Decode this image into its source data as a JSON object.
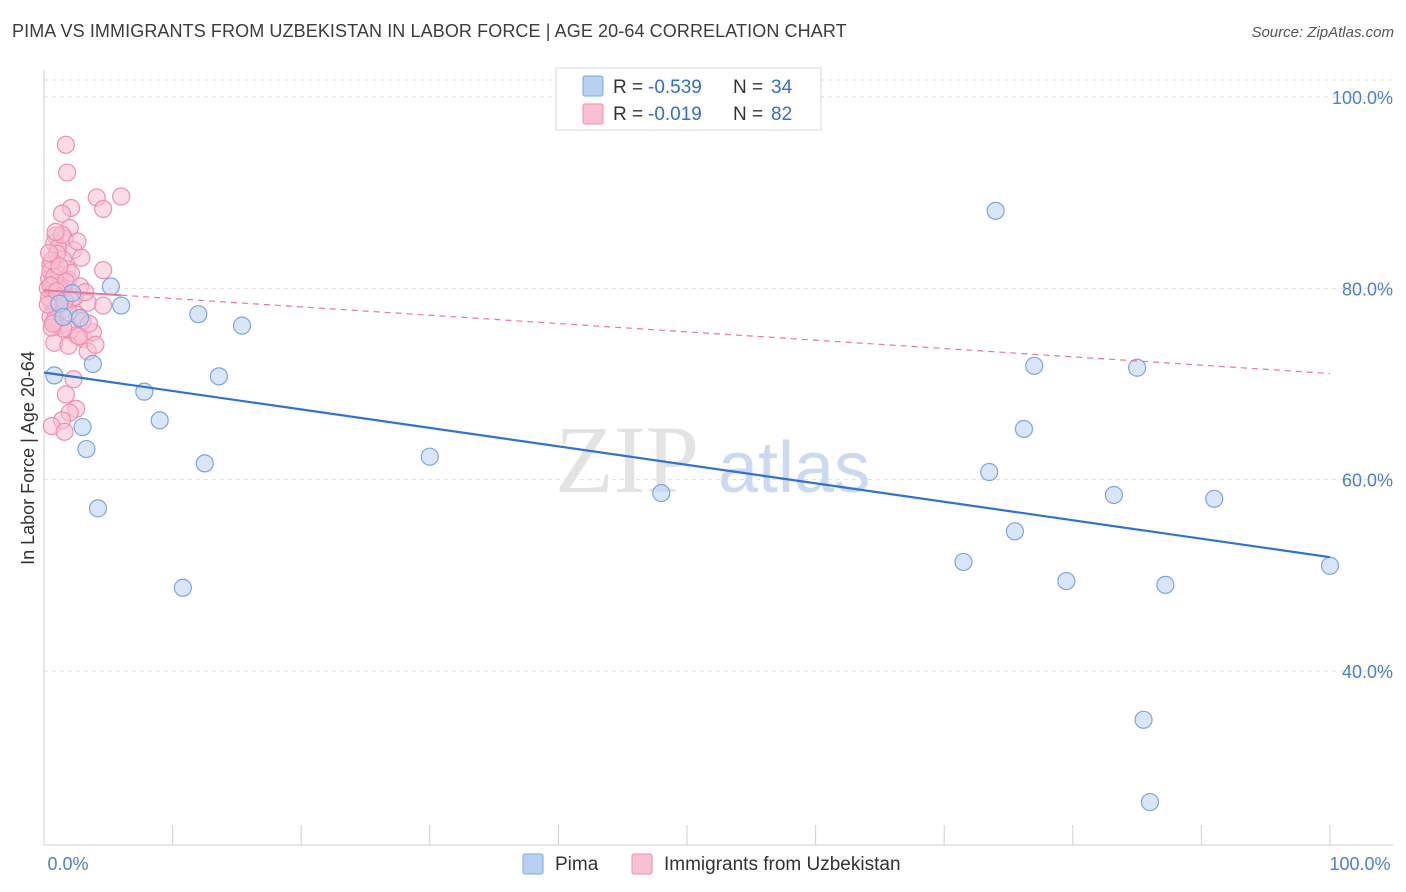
{
  "title": "PIMA VS IMMIGRANTS FROM UZBEKISTAN IN LABOR FORCE | AGE 20-64 CORRELATION CHART",
  "source": "Source: ZipAtlas.com",
  "watermark": {
    "zip": "ZIP",
    "atlas": "atlas"
  },
  "colors": {
    "pima_fill": "#b8d1f3",
    "pima_stroke": "#7ba6e0",
    "pima_line": "#2f72d0",
    "uzb_fill": "#f8c0d2",
    "uzb_stroke": "#ee8fb0",
    "uzb_line": "#e8779c",
    "axis_label": "#4a7fd4",
    "grid": "#dddddd"
  },
  "legend": {
    "rows": [
      {
        "r_label": "R =",
        "r_value": "-0.539",
        "n_label": "N =",
        "n_value": "34"
      },
      {
        "r_label": "R =",
        "r_value": "-0.019",
        "n_label": "N =",
        "n_value": "82"
      }
    ]
  },
  "chart_data": {
    "type": "scatter",
    "title": "PIMA VS IMMIGRANTS FROM UZBEKISTAN IN LABOR FORCE | AGE 20-64 CORRELATION CHART",
    "xlabel": "",
    "ylabel": "In Labor Force | Age 20-64",
    "xlim": [
      0,
      100
    ],
    "ylim": [
      20,
      103
    ],
    "x_tick_labels": [
      "0.0%",
      "100.0%"
    ],
    "y_ticks": [
      40,
      60,
      80,
      100
    ],
    "y_tick_labels": [
      "40.0%",
      "60.0%",
      "80.0%",
      "100.0%"
    ],
    "series": [
      {
        "name": "Pima",
        "trend": {
          "x": [
            0,
            100
          ],
          "y": [
            71.2,
            51.9
          ]
        },
        "points": [
          [
            0.8,
            70.9
          ],
          [
            1.2,
            78.4
          ],
          [
            2.8,
            76.9
          ],
          [
            3.8,
            72.1
          ],
          [
            5.2,
            80.2
          ],
          [
            6.0,
            78.2
          ],
          [
            3.0,
            65.5
          ],
          [
            3.3,
            63.2
          ],
          [
            4.2,
            57.0
          ],
          [
            7.8,
            69.2
          ],
          [
            9.0,
            66.2
          ],
          [
            12.0,
            77.3
          ],
          [
            13.6,
            70.8
          ],
          [
            15.4,
            76.1
          ],
          [
            12.5,
            61.7
          ],
          [
            10.8,
            48.7
          ],
          [
            30.0,
            62.4
          ],
          [
            48.0,
            58.6
          ],
          [
            71.5,
            51.4
          ],
          [
            73.5,
            60.8
          ],
          [
            75.5,
            54.6
          ],
          [
            74.0,
            88.1
          ],
          [
            76.2,
            65.3
          ],
          [
            77.0,
            71.9
          ],
          [
            85.0,
            71.7
          ],
          [
            79.5,
            49.4
          ],
          [
            83.2,
            58.4
          ],
          [
            85.5,
            34.9
          ],
          [
            86.0,
            26.3
          ],
          [
            87.2,
            49.0
          ],
          [
            91.0,
            58.0
          ],
          [
            100.0,
            51.0
          ],
          [
            1.5,
            77.0
          ],
          [
            2.2,
            79.5
          ]
        ]
      },
      {
        "name": "Immigrants from Uzbekistan",
        "trend": {
          "x": [
            0,
            100
          ],
          "y": [
            79.8,
            71.1
          ]
        },
        "points": [
          [
            1.7,
            95.0
          ],
          [
            1.8,
            92.1
          ],
          [
            4.1,
            89.5
          ],
          [
            6.0,
            89.6
          ],
          [
            2.1,
            88.4
          ],
          [
            4.6,
            88.3
          ],
          [
            1.4,
            87.8
          ],
          [
            2.0,
            86.3
          ],
          [
            0.9,
            85.5
          ],
          [
            1.6,
            85.2
          ],
          [
            0.8,
            84.7
          ],
          [
            1.1,
            84.2
          ],
          [
            2.3,
            84.0
          ],
          [
            1.5,
            83.0
          ],
          [
            2.9,
            83.2
          ],
          [
            0.5,
            82.5
          ],
          [
            1.8,
            82.0
          ],
          [
            4.6,
            81.9
          ],
          [
            0.4,
            81.0
          ],
          [
            0.9,
            80.6
          ],
          [
            1.3,
            80.3
          ],
          [
            1.9,
            80.9
          ],
          [
            0.3,
            80.0
          ],
          [
            0.7,
            79.5
          ],
          [
            1.1,
            79.8
          ],
          [
            1.4,
            79.3
          ],
          [
            2.2,
            78.9
          ],
          [
            0.6,
            78.5
          ],
          [
            0.9,
            78.0
          ],
          [
            1.6,
            77.8
          ],
          [
            2.6,
            77.2
          ],
          [
            3.4,
            78.5
          ],
          [
            4.6,
            78.2
          ],
          [
            0.5,
            77.0
          ],
          [
            0.8,
            76.5
          ],
          [
            1.2,
            76.1
          ],
          [
            2.0,
            75.6
          ],
          [
            2.5,
            75.1
          ],
          [
            3.1,
            74.7
          ],
          [
            3.8,
            75.4
          ],
          [
            0.8,
            74.3
          ],
          [
            1.9,
            74.0
          ],
          [
            3.4,
            73.4
          ],
          [
            4.0,
            74.1
          ],
          [
            2.3,
            70.5
          ],
          [
            1.7,
            68.9
          ],
          [
            2.5,
            67.4
          ],
          [
            2.0,
            67.0
          ],
          [
            1.4,
            66.2
          ],
          [
            0.6,
            65.6
          ],
          [
            1.6,
            65.0
          ],
          [
            0.5,
            81.8
          ],
          [
            1.0,
            83.6
          ],
          [
            1.4,
            85.6
          ],
          [
            2.6,
            84.9
          ],
          [
            0.7,
            80.4
          ],
          [
            1.2,
            81.4
          ],
          [
            0.4,
            79.0
          ],
          [
            0.9,
            76.9
          ],
          [
            3.0,
            76.6
          ],
          [
            1.5,
            75.8
          ],
          [
            2.7,
            75.0
          ],
          [
            3.5,
            76.3
          ],
          [
            0.6,
            82.9
          ],
          [
            1.1,
            80.1
          ],
          [
            0.3,
            78.3
          ],
          [
            2.1,
            81.6
          ],
          [
            1.3,
            79.9
          ],
          [
            0.8,
            81.2
          ],
          [
            1.7,
            80.7
          ],
          [
            2.4,
            79.1
          ],
          [
            0.5,
            80.3
          ],
          [
            1.0,
            79.7
          ],
          [
            0.6,
            75.9
          ],
          [
            1.9,
            77.5
          ],
          [
            2.8,
            80.2
          ],
          [
            0.4,
            83.7
          ],
          [
            1.2,
            82.3
          ],
          [
            3.2,
            79.6
          ],
          [
            0.9,
            85.9
          ],
          [
            1.6,
            78.7
          ],
          [
            0.7,
            76.3
          ]
        ]
      }
    ]
  }
}
